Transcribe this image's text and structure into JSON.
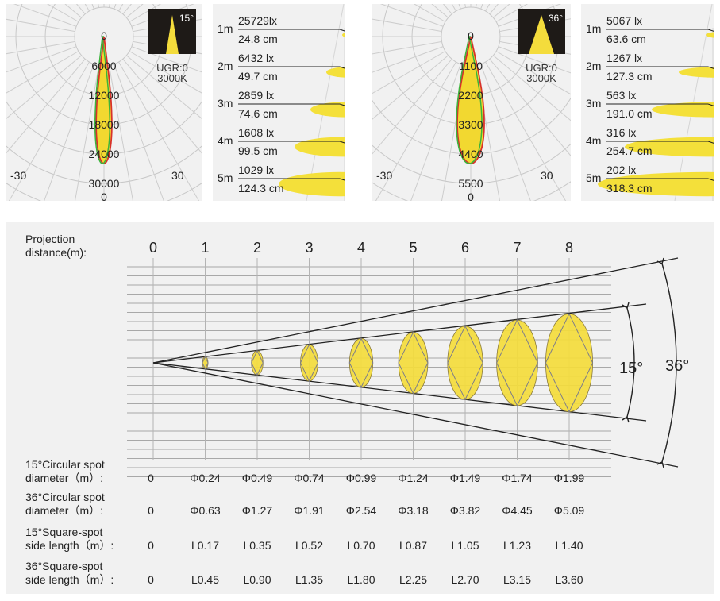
{
  "chart_data": [
    {
      "type": "polar",
      "beam_angle_label": "15°",
      "ugr": "UGR:0",
      "cct": "3000K",
      "center_label": "0",
      "radial_ticks": [
        "6000",
        "12000",
        "18000",
        "24000",
        "30000"
      ],
      "bottom_label": "0",
      "left_angle": "-30",
      "right_angle": "30",
      "beam_half_angle_deg": 7.5
    },
    {
      "type": "table",
      "rows": [
        {
          "distance": "1m",
          "lux": "25729lx",
          "diameter": "24.8 cm"
        },
        {
          "distance": "2m",
          "lux": "6432 lx",
          "diameter": "49.7 cm"
        },
        {
          "distance": "3m",
          "lux": "2859 lx",
          "diameter": "74.6 cm"
        },
        {
          "distance": "4m",
          "lux": "1608 lx",
          "diameter": "99.5 cm"
        },
        {
          "distance": "5m",
          "lux": "1029 lx",
          "diameter": "124.3 cm"
        }
      ]
    },
    {
      "type": "polar",
      "beam_angle_label": "36°",
      "ugr": "UGR:0",
      "cct": "3000K",
      "center_label": "0",
      "radial_ticks": [
        "1100",
        "2200",
        "3300",
        "4400",
        "5500"
      ],
      "bottom_label": "0",
      "left_angle": "-30",
      "right_angle": "30",
      "beam_half_angle_deg": 18
    },
    {
      "type": "table",
      "rows": [
        {
          "distance": "1m",
          "lux": "5067 lx",
          "diameter": "63.6 cm"
        },
        {
          "distance": "2m",
          "lux": "1267 lx",
          "diameter": "127.3 cm"
        },
        {
          "distance": "3m",
          "lux": "563 lx",
          "diameter": "191.0 cm"
        },
        {
          "distance": "4m",
          "lux": "316 lx",
          "diameter": "254.7 cm"
        },
        {
          "distance": "5m",
          "lux": "202 lx",
          "diameter": "318.3 cm"
        }
      ]
    },
    {
      "type": "diagram",
      "xlabel": "Projection distance(m):",
      "distances": [
        "0",
        "1",
        "2",
        "3",
        "4",
        "5",
        "6",
        "7",
        "8"
      ],
      "angles": [
        "15°",
        "36°"
      ],
      "rows": [
        {
          "label": "15°Circular spot diameter（m）:",
          "values": [
            "0",
            "Φ0.24",
            "Φ0.49",
            "Φ0.74",
            "Φ0.99",
            "Φ1.24",
            "Φ1.49",
            "Φ1.74",
            "Φ1.99"
          ]
        },
        {
          "label": "36°Circular spot diameter（m）:",
          "values": [
            "0",
            "Φ0.63",
            "Φ1.27",
            "Φ1.91",
            "Φ2.54",
            "Φ3.18",
            "Φ3.82",
            "Φ4.45",
            "Φ5.09"
          ]
        },
        {
          "label": "15°Square-spot side length（m）:",
          "values": [
            "0",
            "L0.17",
            "L0.35",
            "L0.52",
            "L0.70",
            "L0.87",
            "L1.05",
            "L1.23",
            "L1.40"
          ]
        },
        {
          "label": "36°Square-spot side length（m）:",
          "values": [
            "0",
            "L0.45",
            "L0.90",
            "L1.35",
            "L1.80",
            "L2.25",
            "L2.70",
            "L3.15",
            "L3.60"
          ]
        }
      ]
    }
  ]
}
